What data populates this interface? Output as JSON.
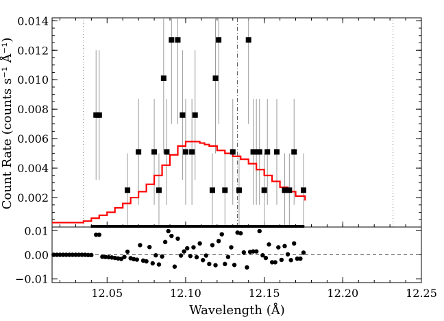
{
  "chart_data": [
    {
      "type": "scatter",
      "panel": "spectrum",
      "ylabel": "Count Rate (counts s⁻¹ Å⁻¹)",
      "xlim": [
        12.015,
        12.25
      ],
      "ylim": [
        0,
        0.0142
      ],
      "yticks": [
        0.002,
        0.004,
        0.006,
        0.008,
        0.01,
        0.012,
        0.014
      ],
      "ytick_labels": [
        "0.002",
        "0.004",
        "0.006",
        "0.008",
        "0.010",
        "0.012",
        "0.014"
      ],
      "reference_lines": {
        "dotted": [
          12.035,
          12.232
        ],
        "dash_dot": 12.133
      },
      "data": {
        "x": [
          12.043,
          12.045,
          12.063,
          12.07,
          12.072,
          12.08,
          12.083,
          12.086,
          12.088,
          12.091,
          12.095,
          12.098,
          12.1,
          12.104,
          12.106,
          12.117,
          12.119,
          12.121,
          12.125,
          12.13,
          12.134,
          12.14,
          12.143,
          12.145,
          12.147,
          12.15,
          12.152,
          12.156,
          12.158,
          12.163,
          12.166,
          12.169,
          12.175
        ],
        "y": [
          0.0076,
          0.0076,
          0.0025,
          0.0051,
          0.0,
          0.0051,
          0.0025,
          0.0101,
          0.0051,
          0.0127,
          0.0127,
          0.0076,
          0.0051,
          0.0051,
          0.0076,
          0.0025,
          0.0101,
          0.0127,
          0.0025,
          0.0051,
          0.0025,
          0.0127,
          0.0051,
          0.0051,
          0.0051,
          0.0025,
          0.0051,
          0.0,
          0.0051,
          0.0025,
          0.0025,
          0.0051,
          0.0025
        ],
        "err": [
          0.0044,
          0.0044,
          0.0025,
          0.0036,
          0.0,
          0.0036,
          0.0025,
          0.0051,
          0.0036,
          0.0057,
          0.0057,
          0.0044,
          0.0036,
          0.0036,
          0.0044,
          0.0025,
          0.0051,
          0.0057,
          0.0025,
          0.0036,
          0.0025,
          0.0057,
          0.0036,
          0.0036,
          0.0036,
          0.0025,
          0.0036,
          0.0,
          0.0036,
          0.0025,
          0.0025,
          0.0036,
          0.0025
        ]
      },
      "zero_bins": {
        "x_start": 12.041,
        "x_end": 12.176,
        "step": 0.00205
      },
      "model": {
        "color": "#ff0000",
        "x": [
          12.015,
          12.03,
          12.035,
          12.04,
          12.045,
          12.05,
          12.055,
          12.06,
          12.065,
          12.07,
          12.075,
          12.08,
          12.085,
          12.09,
          12.095,
          12.1,
          12.103,
          12.106,
          12.109,
          12.112,
          12.115,
          12.12,
          12.125,
          12.13,
          12.135,
          12.14,
          12.145,
          12.15,
          12.155,
          12.16,
          12.165,
          12.17,
          12.176
        ],
        "y": [
          0.0003,
          0.0003,
          0.0004,
          0.0006,
          0.0008,
          0.001,
          0.0013,
          0.0016,
          0.002,
          0.0024,
          0.0029,
          0.0035,
          0.0042,
          0.0049,
          0.0055,
          0.0058,
          0.0058,
          0.0058,
          0.0057,
          0.0056,
          0.0055,
          0.0052,
          0.005,
          0.0048,
          0.0046,
          0.0043,
          0.0039,
          0.0035,
          0.0031,
          0.0027,
          0.0024,
          0.0021,
          0.0018
        ]
      }
    },
    {
      "type": "scatter",
      "panel": "residuals",
      "xlabel": "Wavelength (Å)",
      "xlim": [
        12.015,
        12.25
      ],
      "ylim": [
        -0.0115,
        0.0115
      ],
      "xticks": [
        12.05,
        12.1,
        12.15,
        12.2,
        12.25
      ],
      "xtick_labels": [
        "12.05",
        "12.10",
        "12.15",
        "12.20",
        "12.25"
      ],
      "yticks": [
        -0.01,
        0.0,
        0.01
      ],
      "ytick_labels": [
        "−0.01",
        "0.00",
        "0.01"
      ],
      "zero_line": true,
      "residuals": {
        "x": [
          12.016,
          12.018,
          12.02,
          12.022,
          12.024,
          12.026,
          12.028,
          12.03,
          12.032,
          12.034,
          12.036,
          12.038,
          12.04,
          12.043,
          12.045,
          12.047,
          12.049,
          12.051,
          12.053,
          12.055,
          12.057,
          12.059,
          12.061,
          12.063,
          12.065,
          12.067,
          12.069,
          12.071,
          12.073,
          12.075,
          12.077,
          12.079,
          12.081,
          12.083,
          12.085,
          12.087,
          12.089,
          12.091,
          12.093,
          12.095,
          12.097,
          12.099,
          12.101,
          12.103,
          12.105,
          12.107,
          12.109,
          12.111,
          12.113,
          12.115,
          12.117,
          12.119,
          12.121,
          12.123,
          12.125,
          12.127,
          12.129,
          12.131,
          12.133,
          12.135,
          12.137,
          12.139,
          12.141,
          12.143,
          12.145,
          12.147,
          12.149,
          12.151,
          12.153,
          12.155,
          12.157,
          12.159,
          12.161,
          12.163,
          12.165,
          12.167,
          12.169,
          12.171,
          12.173,
          12.175
        ],
        "y": [
          0.0,
          0.0,
          0.0,
          0.0,
          0.0,
          0.0,
          0.0,
          0.0,
          0.0,
          0.0,
          0.0,
          -0.0001,
          -0.0001,
          0.0083,
          0.0083,
          -0.0008,
          -0.0009,
          -0.001,
          -0.0011,
          -0.0013,
          -0.0015,
          -0.0017,
          -0.0009,
          0.0013,
          -0.0014,
          -0.0018,
          -0.002,
          0.004,
          -0.0024,
          -0.0027,
          0.0032,
          -0.0035,
          -0.0002,
          -0.004,
          -0.0007,
          0.0053,
          0.0098,
          0.0078,
          -0.0049,
          0.0067,
          -0.0003,
          0.0014,
          0.0027,
          -0.0005,
          0.0031,
          -0.001,
          0.0047,
          -0.0022,
          -0.0003,
          -0.0038,
          0.004,
          -0.0043,
          0.0057,
          0.0085,
          -0.0038,
          -0.0009,
          0.0031,
          -0.0042,
          0.0092,
          0.0089,
          0.001,
          -0.0052,
          0.0012,
          0.0014,
          0.0014,
          0.0098,
          -0.0002,
          -0.0013,
          0.0043,
          -0.0031,
          -0.0031,
          0.0031,
          -0.0021,
          0.0036,
          0.0002,
          -0.0022,
          0.0047,
          -0.0016,
          -0.0016,
          0.0009
        ]
      }
    }
  ]
}
